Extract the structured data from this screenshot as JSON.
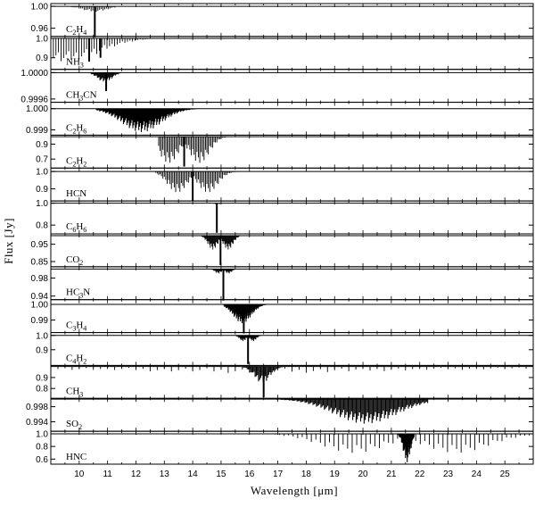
{
  "chart_data": {
    "type": "line",
    "xlabel": "Wavelength [μm]",
    "ylabel": "Flux [Jy]",
    "xlim": [
      9.0,
      26.0
    ],
    "x_ticks": [
      10,
      11,
      12,
      13,
      14,
      15,
      16,
      17,
      18,
      19,
      20,
      21,
      22,
      23,
      24,
      25
    ],
    "panels": [
      {
        "name": "C2H4",
        "label": "C",
        "labelParts": [
          [
            "C",
            ""
          ],
          [
            "2",
            "sub"
          ],
          [
            "H",
            ""
          ],
          [
            "4",
            "sub"
          ]
        ],
        "ylim": [
          0.945,
          1.005
        ],
        "yticks": [
          "1.00",
          "0.96"
        ],
        "yvals": [
          1.0,
          0.96
        ],
        "features": [
          {
            "type": "lines",
            "start": 9.1,
            "end": 11.3,
            "spacing": 0.06,
            "center": 10.55,
            "width": 0.6,
            "depth": 0.01
          },
          {
            "type": "spike",
            "x": 10.55,
            "depth": 0.058
          }
        ]
      },
      {
        "name": "NH3",
        "labelParts": [
          [
            "NH",
            ""
          ],
          [
            "3",
            "sub"
          ]
        ],
        "ylim": [
          0.84,
          1.01
        ],
        "yticks": [
          "1.0",
          "0.9"
        ],
        "yvals": [
          1.0,
          0.9
        ],
        "features": [
          {
            "type": "lines",
            "start": 9.0,
            "end": 12.5,
            "spacing": 0.09,
            "center": 9.6,
            "width": 1.6,
            "depth": 0.12
          },
          {
            "type": "spike",
            "x": 10.35,
            "depth": 0.12
          },
          {
            "type": "spike",
            "x": 10.75,
            "depth": 0.1
          }
        ]
      },
      {
        "name": "CH3CN",
        "labelParts": [
          [
            "CH",
            ""
          ],
          [
            "3",
            "sub"
          ],
          [
            "CN",
            ""
          ]
        ],
        "ylim": [
          0.99955,
          1.00005
        ],
        "yticks": [
          "1.0000",
          "0.9996"
        ],
        "yvals": [
          1.0,
          0.9996
        ],
        "features": [
          {
            "type": "lines",
            "start": 10.4,
            "end": 11.5,
            "spacing": 0.03,
            "center": 10.9,
            "width": 0.35,
            "depth": 0.00015
          },
          {
            "type": "spike",
            "x": 10.95,
            "depth": 0.00028
          }
        ]
      },
      {
        "name": "C2H6",
        "labelParts": [
          [
            "C",
            ""
          ],
          [
            "2",
            "sub"
          ],
          [
            "H",
            ""
          ],
          [
            "6",
            "sub"
          ]
        ],
        "ylim": [
          0.99875,
          1.0003
        ],
        "yticks": [
          "1.000",
          "0.999"
        ],
        "yvals": [
          1.0,
          0.999
        ],
        "features": [
          {
            "type": "band",
            "start": 10.6,
            "end": 14.3,
            "spacing": 0.03,
            "center": 12.2,
            "width": 1.0,
            "depth": 0.0011
          }
        ]
      },
      {
        "name": "C2H2",
        "labelParts": [
          [
            "C",
            ""
          ],
          [
            "2",
            "sub"
          ],
          [
            "H",
            ""
          ],
          [
            "2",
            "sub"
          ]
        ],
        "ylim": [
          0.58,
          1.02
        ],
        "yticks": [
          "0.9",
          "0.7"
        ],
        "yvals": [
          0.9,
          0.7
        ],
        "features": [
          {
            "type": "branch",
            "start": 12.8,
            "end": 15.6,
            "spacing": 0.05,
            "center": 13.7,
            "width": 0.9,
            "depth": 0.35
          },
          {
            "type": "spike",
            "x": 13.7,
            "depth": 0.4
          }
        ]
      },
      {
        "name": "HCN",
        "labelParts": [
          [
            "HCN",
            ""
          ]
        ],
        "ylim": [
          0.83,
          1.02
        ],
        "yticks": [
          "1.0",
          "0.9"
        ],
        "yvals": [
          1.0,
          0.9
        ],
        "features": [
          {
            "type": "branch",
            "start": 12.7,
            "end": 15.7,
            "spacing": 0.05,
            "center": 14.0,
            "width": 0.9,
            "depth": 0.12
          },
          {
            "type": "spike",
            "x": 14.0,
            "depth": 0.17
          }
        ]
      },
      {
        "name": "C6H6",
        "labelParts": [
          [
            "C",
            ""
          ],
          [
            "6",
            "sub"
          ],
          [
            "H",
            ""
          ],
          [
            "6",
            "sub"
          ]
        ],
        "ylim": [
          0.72,
          1.02
        ],
        "yticks": [
          "1.0",
          "0.8"
        ],
        "yvals": [
          1.0,
          0.8
        ],
        "features": [
          {
            "type": "lines",
            "start": 14.4,
            "end": 15.3,
            "spacing": 0.05,
            "center": 14.85,
            "width": 0.2,
            "depth": 0.01
          },
          {
            "type": "spike",
            "x": 14.85,
            "depth": 0.27
          }
        ]
      },
      {
        "name": "CO2",
        "labelParts": [
          [
            "CO",
            ""
          ],
          [
            "2",
            "sub"
          ]
        ],
        "ylim": [
          0.82,
          1.01
        ],
        "yticks": [
          "0.95",
          "0.85"
        ],
        "yvals": [
          0.95,
          0.85
        ],
        "features": [
          {
            "type": "branch",
            "start": 14.2,
            "end": 16.2,
            "spacing": 0.03,
            "center": 14.98,
            "width": 0.45,
            "depth": 0.08
          },
          {
            "type": "spike",
            "x": 14.98,
            "depth": 0.17
          }
        ]
      },
      {
        "name": "HC3N",
        "labelParts": [
          [
            "HC",
            ""
          ],
          [
            "3",
            "sub"
          ],
          [
            "N",
            ""
          ]
        ],
        "ylim": [
          0.932,
          1.005
        ],
        "yticks": [
          "0.98",
          "0.94"
        ],
        "yvals": [
          0.98,
          0.94
        ],
        "features": [
          {
            "type": "branch",
            "start": 14.6,
            "end": 15.7,
            "spacing": 0.03,
            "center": 15.08,
            "width": 0.3,
            "depth": 0.01
          },
          {
            "type": "spike",
            "x": 15.08,
            "depth": 0.07
          }
        ]
      },
      {
        "name": "C3H4",
        "labelParts": [
          [
            "C",
            ""
          ],
          [
            "3",
            "sub"
          ],
          [
            "H",
            ""
          ],
          [
            "4",
            "sub"
          ]
        ],
        "ylim": [
          0.982,
          1.003
        ],
        "yticks": [
          "1.00",
          "0.99"
        ],
        "yvals": [
          1.0,
          0.99
        ],
        "features": [
          {
            "type": "band",
            "start": 15.1,
            "end": 16.9,
            "spacing": 0.02,
            "center": 15.75,
            "width": 0.45,
            "depth": 0.012
          },
          {
            "type": "spike",
            "x": 15.8,
            "depth": 0.019
          }
        ]
      },
      {
        "name": "C4H2",
        "labelParts": [
          [
            "C",
            ""
          ],
          [
            "4",
            "sub"
          ],
          [
            "H",
            ""
          ],
          [
            "2",
            "sub"
          ]
        ],
        "ylim": [
          0.79,
          1.02
        ],
        "yticks": [
          "1.0",
          "0.9"
        ],
        "yvals": [
          1.0,
          0.9
        ],
        "features": [
          {
            "type": "branch",
            "start": 15.5,
            "end": 16.6,
            "spacing": 0.025,
            "center": 15.95,
            "width": 0.3,
            "depth": 0.04
          },
          {
            "type": "spike",
            "x": 15.95,
            "depth": 0.2
          }
        ]
      },
      {
        "name": "CH3",
        "labelParts": [
          [
            "CH",
            ""
          ],
          [
            "3",
            "sub"
          ]
        ],
        "ylim": [
          0.71,
          1.01
        ],
        "yticks": [
          "0.9",
          "0.8"
        ],
        "yvals": [
          0.9,
          0.8
        ],
        "features": [
          {
            "type": "sparse",
            "start": 9.0,
            "end": 26.0,
            "spacing": 0.25,
            "center": 16.5,
            "width": 2.5,
            "depth": 0.06
          },
          {
            "type": "band",
            "start": 15.6,
            "end": 17.2,
            "spacing": 0.04,
            "center": 16.45,
            "width": 0.4,
            "depth": 0.15
          },
          {
            "type": "spike",
            "x": 16.5,
            "depth": 0.28
          }
        ]
      },
      {
        "name": "SO2",
        "labelParts": [
          [
            "SO",
            ""
          ],
          [
            "2",
            "sub"
          ]
        ],
        "ylim": [
          0.9915,
          1.0002
        ],
        "yticks": [
          "0.998",
          "0.994"
        ],
        "yvals": [
          0.998,
          0.994
        ],
        "features": [
          {
            "type": "band",
            "start": 16.8,
            "end": 22.3,
            "spacing": 0.04,
            "center": 20.1,
            "width": 1.6,
            "depth": 0.0065
          }
        ]
      },
      {
        "name": "HNC",
        "labelParts": [
          [
            "HNC",
            ""
          ]
        ],
        "ylim": [
          0.52,
          1.04
        ],
        "yticks": [
          "1.0",
          "0.8",
          "0.6"
        ],
        "yvals": [
          1.0,
          0.8,
          0.6
        ],
        "features": [
          {
            "type": "branch",
            "start": 16.9,
            "end": 26.0,
            "spacing": 0.16,
            "center": 21.5,
            "width": 3.0,
            "depth": 0.3
          },
          {
            "type": "band",
            "start": 21.2,
            "end": 21.8,
            "spacing": 0.02,
            "center": 21.55,
            "width": 0.18,
            "depth": 0.45
          }
        ]
      }
    ]
  }
}
